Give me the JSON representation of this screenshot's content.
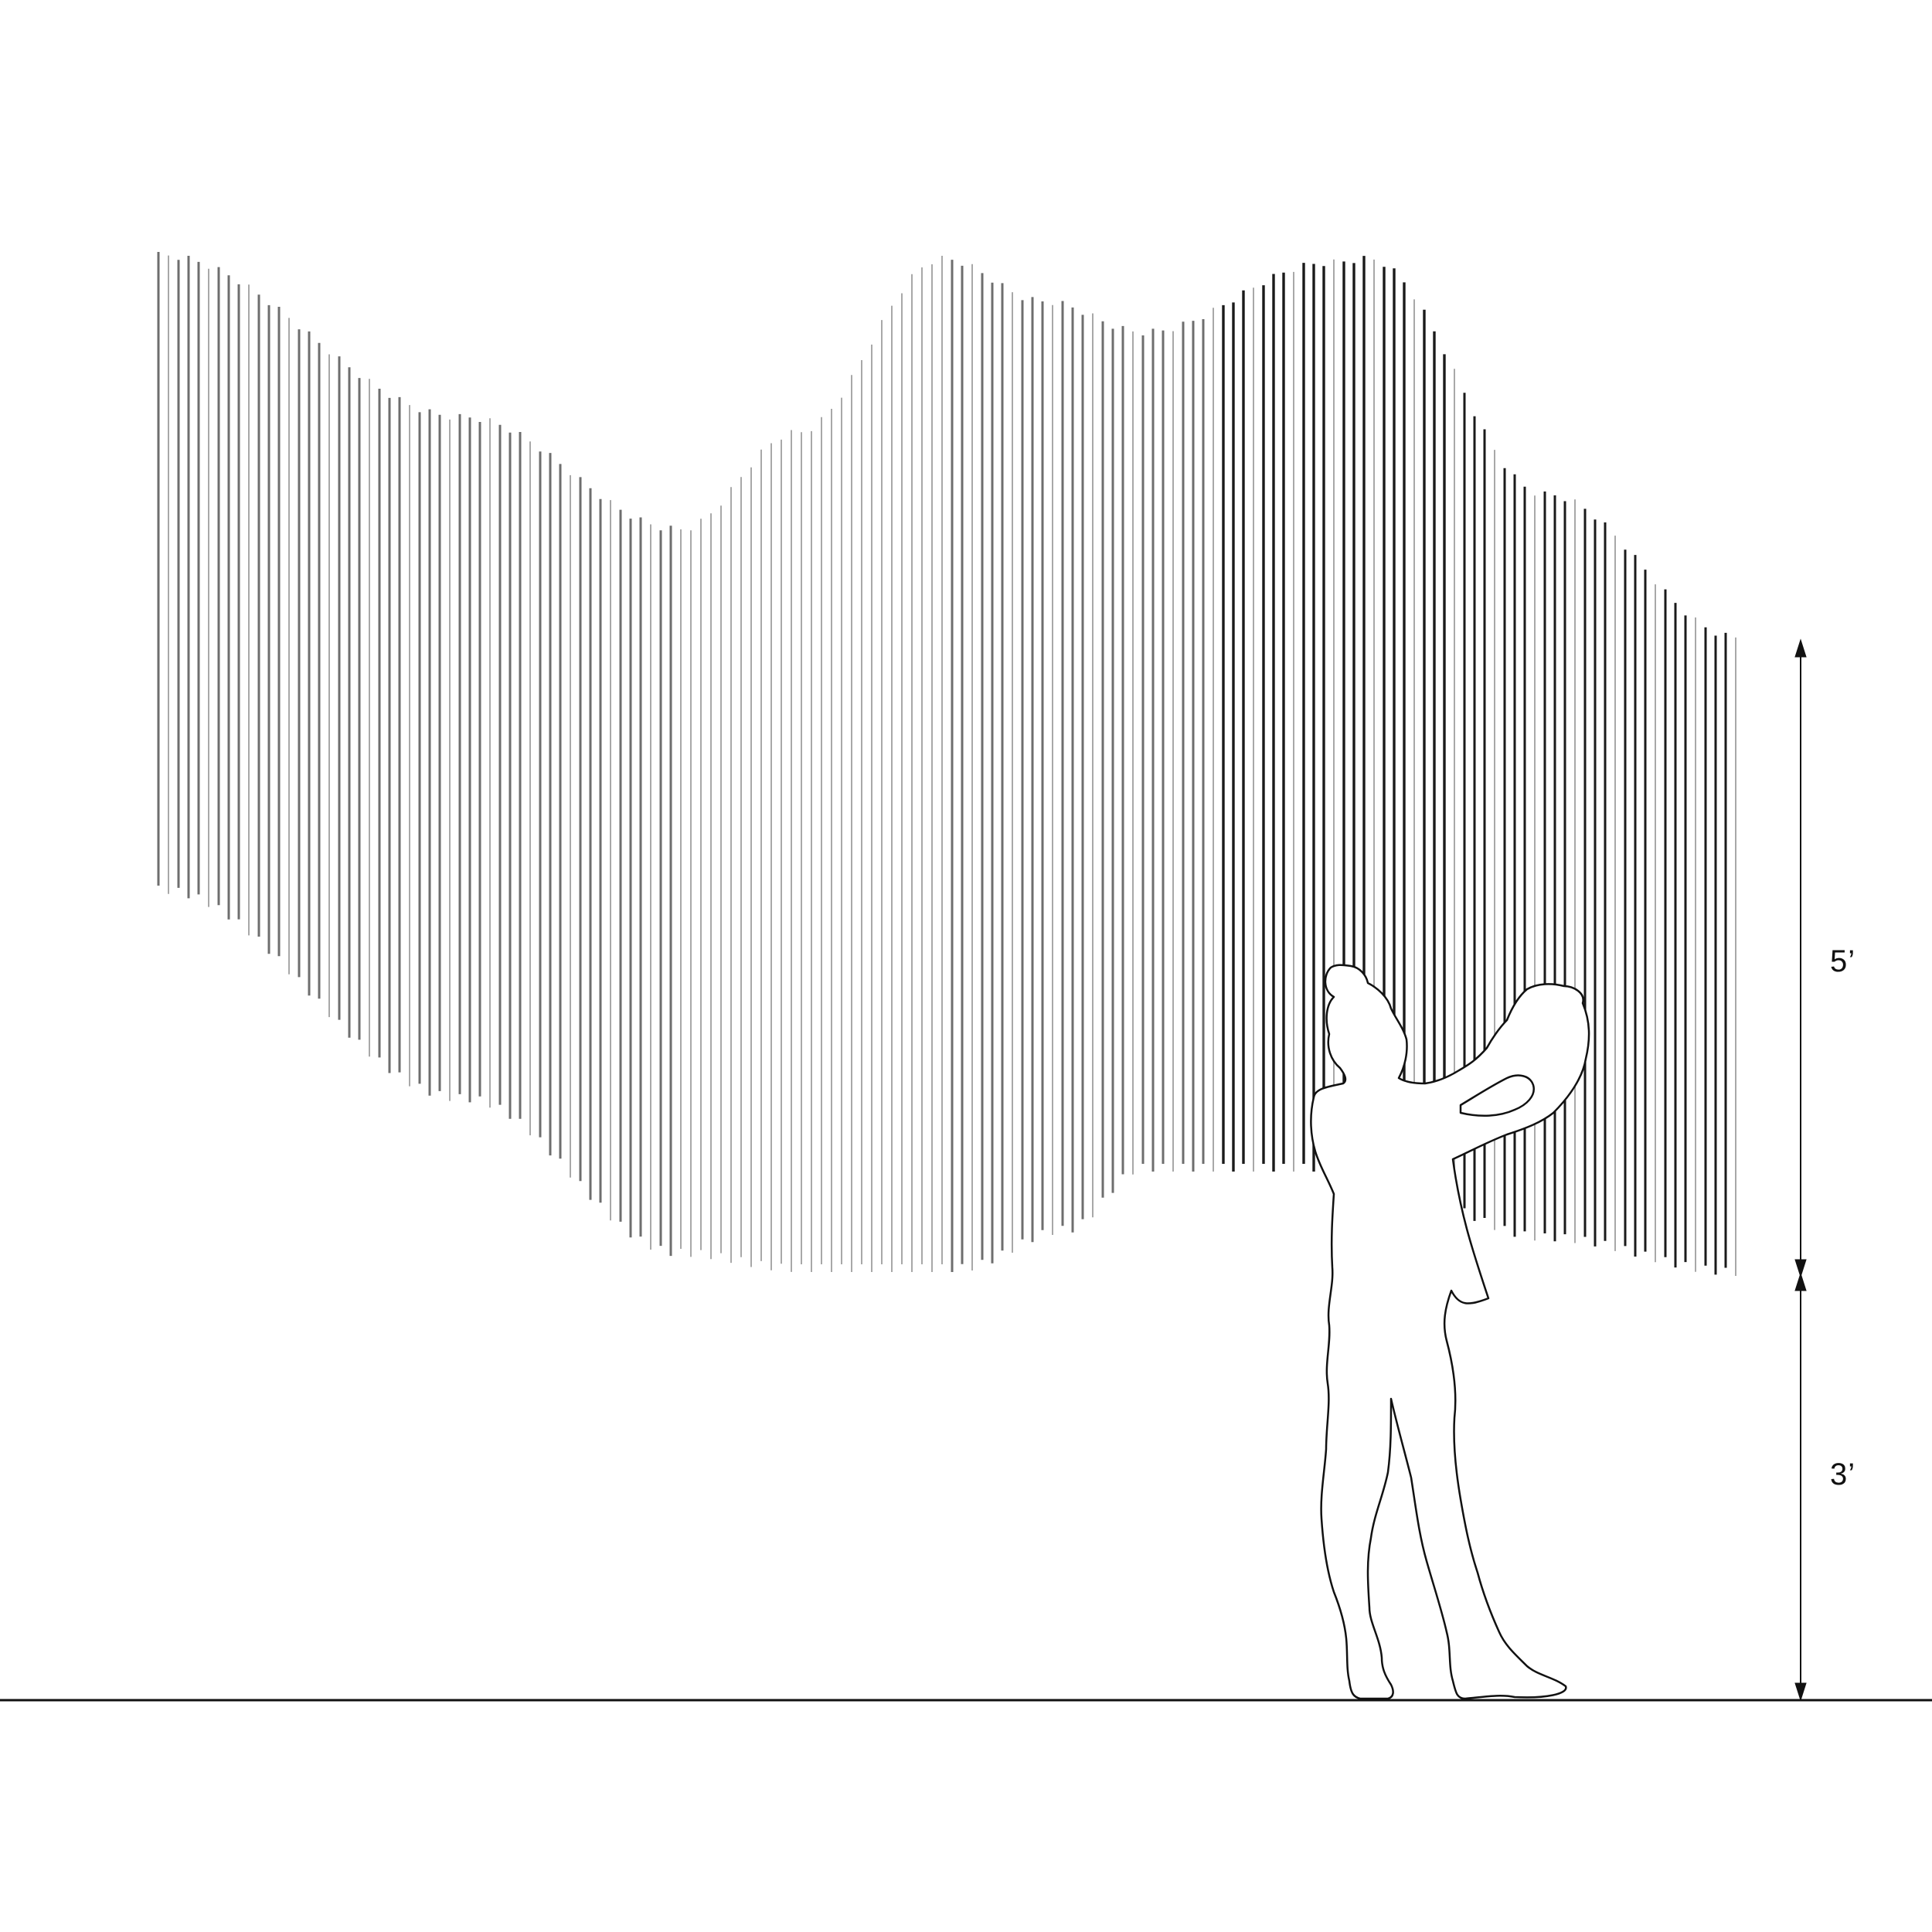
{
  "dimensions": {
    "upper": "5’",
    "lower": "3’"
  },
  "colors": {
    "ink": "#111111",
    "rod_dark": "#1a1a1a",
    "rod_mid": "#6e6e6e",
    "rod_light": "#a8a8a8",
    "background": "#ffffff"
  }
}
